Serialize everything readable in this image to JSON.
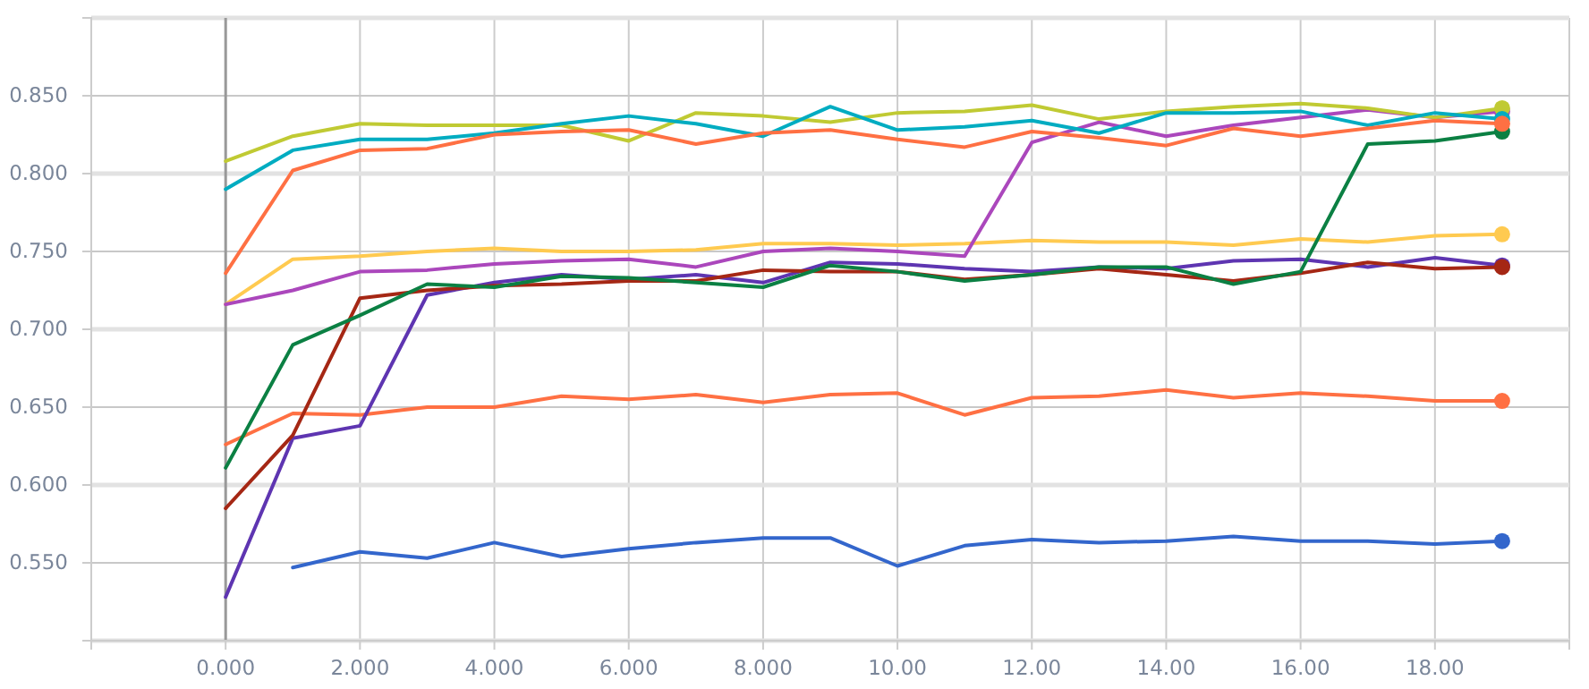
{
  "chart_data": {
    "type": "line",
    "x": [
      0,
      1,
      2,
      3,
      4,
      5,
      6,
      7,
      8,
      9,
      10,
      11,
      12,
      13,
      14,
      15,
      16,
      17,
      18,
      19
    ],
    "xlim": [
      -2,
      20
    ],
    "xticks": [
      {
        "value": -2,
        "label": null
      },
      {
        "value": 0,
        "label": "0.000"
      },
      {
        "value": 2,
        "label": "2.000"
      },
      {
        "value": 4,
        "label": "4.000"
      },
      {
        "value": 6,
        "label": "6.000"
      },
      {
        "value": 8,
        "label": "8.000"
      },
      {
        "value": 10,
        "label": "10.00"
      },
      {
        "value": 12,
        "label": "12.00"
      },
      {
        "value": 14,
        "label": "14.00"
      },
      {
        "value": 16,
        "label": "16.00"
      },
      {
        "value": 18,
        "label": "18.00"
      },
      {
        "value": 20,
        "label": null
      }
    ],
    "ylim": [
      0.5,
      0.9
    ],
    "yticks": [
      {
        "value": 0.5,
        "label": null
      },
      {
        "value": 0.55,
        "label": "0.550"
      },
      {
        "value": 0.6,
        "label": "0.600"
      },
      {
        "value": 0.65,
        "label": "0.650"
      },
      {
        "value": 0.7,
        "label": "0.700"
      },
      {
        "value": 0.75,
        "label": "0.750"
      },
      {
        "value": 0.8,
        "label": "0.800"
      },
      {
        "value": 0.85,
        "label": "0.850"
      },
      {
        "value": 0.9,
        "label": null
      }
    ],
    "grid": true,
    "line_style": "solid",
    "ref_lines": [
      {
        "axis": "x",
        "value": 0,
        "color": "#999999"
      }
    ],
    "series": [
      {
        "color": "#3366cc",
        "values": [
          null,
          0.547,
          0.557,
          0.553,
          0.563,
          0.554,
          0.559,
          0.563,
          0.566,
          0.566,
          0.548,
          0.561,
          0.565,
          0.563,
          0.564,
          0.567,
          0.564,
          0.564,
          0.562,
          0.564
        ]
      },
      {
        "color": "#ff7043",
        "values": [
          0.626,
          0.646,
          0.645,
          0.65,
          0.65,
          0.657,
          0.655,
          0.658,
          0.653,
          0.658,
          0.659,
          0.645,
          0.656,
          0.657,
          0.661,
          0.656,
          0.659,
          0.657,
          0.654,
          0.654
        ]
      },
      {
        "color": "#ffca50",
        "values": [
          0.716,
          0.745,
          0.747,
          0.75,
          0.752,
          0.75,
          0.75,
          0.751,
          0.755,
          0.755,
          0.754,
          0.755,
          0.757,
          0.756,
          0.756,
          0.754,
          0.758,
          0.756,
          0.76,
          0.761
        ]
      },
      {
        "color": "#ab47bc",
        "values": [
          0.716,
          0.725,
          0.737,
          0.738,
          0.742,
          0.744,
          0.745,
          0.74,
          0.75,
          0.752,
          0.75,
          0.747,
          0.82,
          0.833,
          0.824,
          0.831,
          0.836,
          0.841,
          0.836,
          0.84
        ]
      },
      {
        "color": "#5e35b1",
        "values": [
          0.528,
          0.63,
          0.638,
          0.722,
          0.73,
          0.735,
          0.732,
          0.735,
          0.73,
          0.743,
          0.742,
          0.739,
          0.737,
          0.74,
          0.739,
          0.744,
          0.745,
          0.74,
          0.746,
          0.741
        ]
      },
      {
        "color": "#a52714",
        "values": [
          0.585,
          0.632,
          0.72,
          0.725,
          0.728,
          0.729,
          0.731,
          0.731,
          0.738,
          0.737,
          0.737,
          0.732,
          0.735,
          0.739,
          0.735,
          0.731,
          0.736,
          0.743,
          0.739,
          0.74
        ]
      },
      {
        "color": "#0b8043",
        "values": [
          0.611,
          0.69,
          0.709,
          0.729,
          0.727,
          0.734,
          0.733,
          0.73,
          0.727,
          0.741,
          0.737,
          0.731,
          0.735,
          0.74,
          0.74,
          0.729,
          0.737,
          0.819,
          0.821,
          0.827
        ]
      },
      {
        "color": "#c0ca33",
        "values": [
          0.808,
          0.824,
          0.832,
          0.831,
          0.831,
          0.831,
          0.821,
          0.839,
          0.837,
          0.833,
          0.839,
          0.84,
          0.844,
          0.835,
          0.84,
          0.843,
          0.845,
          0.842,
          0.836,
          0.842
        ]
      },
      {
        "color": "#00acc1",
        "values": [
          0.79,
          0.815,
          0.822,
          0.822,
          0.826,
          0.832,
          0.837,
          0.832,
          0.824,
          0.843,
          0.828,
          0.83,
          0.834,
          0.826,
          0.839,
          0.839,
          0.84,
          0.831,
          0.839,
          0.835
        ]
      },
      {
        "color": "#ff7043",
        "values": [
          0.736,
          0.802,
          0.815,
          0.816,
          0.825,
          0.827,
          0.828,
          0.819,
          0.826,
          0.828,
          0.822,
          0.817,
          0.827,
          0.823,
          0.818,
          0.829,
          0.824,
          0.829,
          0.834,
          0.832
        ]
      }
    ]
  }
}
